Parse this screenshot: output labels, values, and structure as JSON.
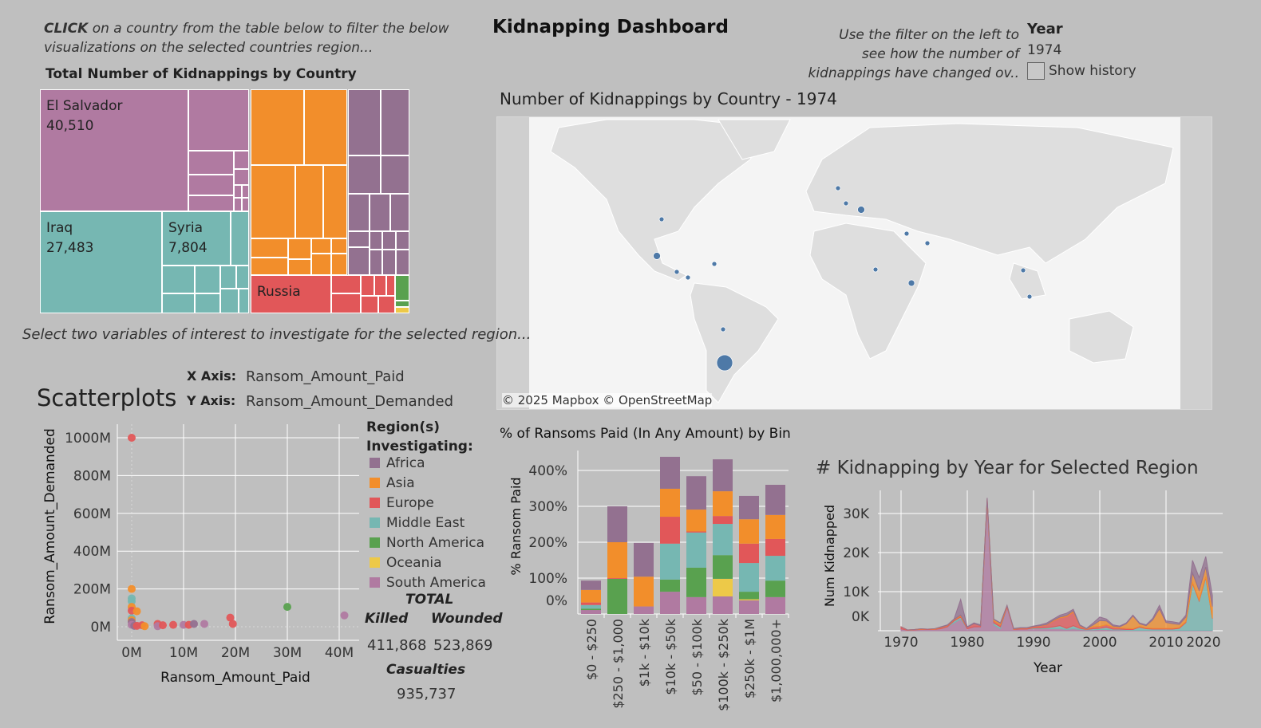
{
  "header": {
    "title": "Kidnapping Dashboard",
    "click_instruction_bold": "CLICK",
    "click_instruction_line1": " on a country from the table below to filter the below",
    "click_instruction_line2": "visualizations on the selected countries region...",
    "filter_instruction": [
      "Use the filter on the left to",
      "see how the number of",
      "kidnappings have changed ov.."
    ]
  },
  "year_filter": {
    "label": "Year",
    "value": "1974",
    "show_history_label": "Show history",
    "show_history_checked": false
  },
  "treemap": {
    "title": "Total Number of Kidnappings by Country",
    "labeled_cells": [
      {
        "country": "El Salvador",
        "value": "40,510",
        "region": "South America"
      },
      {
        "country": "Iraq",
        "value": "27,483",
        "region": "Middle East"
      },
      {
        "country": "Syria",
        "value": "7,804",
        "region": "Middle East"
      },
      {
        "country": "Russia",
        "value": "",
        "region": "Europe"
      }
    ]
  },
  "map": {
    "title": "Number of Kidnappings by Country - 1974",
    "attribution": "© 2025 Mapbox © OpenStreetMap",
    "dot_color": "#4e79a7"
  },
  "scatter_controls": {
    "instruction": "Select two variables of interest to investigate for the selected region...",
    "heading": "Scatterplots",
    "x_label": "X Axis:",
    "x_value": "Ransom_Amount_Paid",
    "y_label": "Y Axis:",
    "y_value": "Ransom_Amount_Demanded"
  },
  "legend": {
    "title_line1": "Region(s)",
    "title_line2": "Investigating:",
    "items": [
      {
        "name": "Africa",
        "color": "#937190"
      },
      {
        "name": "Asia",
        "color": "#f28e2b"
      },
      {
        "name": "Europe",
        "color": "#e15759"
      },
      {
        "name": "Middle East",
        "color": "#76b7b2"
      },
      {
        "name": "North America",
        "color": "#59a14f"
      },
      {
        "name": "Oceania",
        "color": "#edc948"
      },
      {
        "name": "South America",
        "color": "#b07aa1"
      }
    ]
  },
  "totals": {
    "title": "TOTAL",
    "killed_label": "Killed",
    "killed": "411,868",
    "wounded_label": "Wounded",
    "wounded": "523,869",
    "casualties_label": "Casualties",
    "casualties": "935,737"
  },
  "chart_data": [
    {
      "type": "scatter",
      "xlabel": "Ransom_Amount_Paid",
      "ylabel": "Ransom_Amount_Demanded",
      "xlim": [
        -2.5,
        44
      ],
      "ylim": [
        -70,
        1060
      ],
      "xticks": [
        "0M",
        "10M",
        "20M",
        "30M",
        "40M"
      ],
      "xtick_values": [
        0,
        10,
        20,
        30,
        40
      ],
      "yticks": [
        "0M",
        "200M",
        "400M",
        "600M",
        "800M",
        "1000M"
      ],
      "ytick_values": [
        0,
        200,
        400,
        600,
        800,
        1000
      ],
      "grid": true,
      "points": [
        {
          "x": 0,
          "y": 1000,
          "region": "Europe"
        },
        {
          "x": 0,
          "y": 200,
          "region": "Asia"
        },
        {
          "x": 0,
          "y": 150,
          "region": "Middle East"
        },
        {
          "x": 0,
          "y": 135,
          "region": "Middle East"
        },
        {
          "x": 0,
          "y": 105,
          "region": "Asia"
        },
        {
          "x": 0,
          "y": 85,
          "region": "Europe"
        },
        {
          "x": 1,
          "y": 82,
          "region": "Asia"
        },
        {
          "x": 0,
          "y": 45,
          "region": "Middle East"
        },
        {
          "x": 0,
          "y": 35,
          "region": "Asia"
        },
        {
          "x": 0,
          "y": 25,
          "region": "Africa"
        },
        {
          "x": 0,
          "y": 10,
          "region": "South America"
        },
        {
          "x": 0.5,
          "y": 5,
          "region": "Africa"
        },
        {
          "x": 1,
          "y": 5,
          "region": "Europe"
        },
        {
          "x": 2,
          "y": 8,
          "region": "Europe"
        },
        {
          "x": 2.5,
          "y": 3,
          "region": "Asia"
        },
        {
          "x": 5,
          "y": 15,
          "region": "Europe"
        },
        {
          "x": 5,
          "y": 3,
          "region": "South America"
        },
        {
          "x": 6,
          "y": 8,
          "region": "Europe"
        },
        {
          "x": 8,
          "y": 10,
          "region": "Europe"
        },
        {
          "x": 10,
          "y": 10,
          "region": "South America"
        },
        {
          "x": 11,
          "y": 10,
          "region": "Europe"
        },
        {
          "x": 12,
          "y": 15,
          "region": "Africa"
        },
        {
          "x": 14,
          "y": 15,
          "region": "South America"
        },
        {
          "x": 19,
          "y": 48,
          "region": "Europe"
        },
        {
          "x": 19.5,
          "y": 15,
          "region": "Europe"
        },
        {
          "x": 30,
          "y": 105,
          "region": "North America"
        },
        {
          "x": 41,
          "y": 60,
          "region": "South America"
        }
      ]
    },
    {
      "type": "bar",
      "stacked": true,
      "title": "% of Ransoms Paid (In Any Amount)  by Bin",
      "ylabel": "% Ransom Paid",
      "ylim": [
        0,
        450
      ],
      "yticks": [
        "0%",
        "100%",
        "200%",
        "300%",
        "400%"
      ],
      "ytick_values": [
        0,
        100,
        200,
        300,
        400
      ],
      "categories": [
        "$0 - $250",
        "$250 - $1,000",
        "$1k - $10k",
        "$10k - $50k",
        "$50 - $100k",
        "$100k - $250k",
        "$250k - $1M",
        "$1,000,000+"
      ],
      "series": [
        {
          "name": "South America",
          "values": [
            11,
            0,
            21,
            62,
            47,
            49,
            38,
            47
          ]
        },
        {
          "name": "Oceania",
          "values": [
            0,
            0,
            0,
            0,
            0,
            49,
            3,
            0
          ]
        },
        {
          "name": "North America",
          "values": [
            4,
            98,
            0,
            34,
            82,
            66,
            21,
            46
          ]
        },
        {
          "name": "Middle East",
          "values": [
            10,
            0,
            0,
            100,
            98,
            87,
            80,
            69
          ]
        },
        {
          "name": "Europe",
          "values": [
            7,
            2,
            0,
            75,
            3,
            22,
            54,
            47
          ]
        },
        {
          "name": "Asia",
          "values": [
            35,
            100,
            83,
            78,
            61,
            69,
            68,
            67
          ]
        },
        {
          "name": "Africa",
          "values": [
            26,
            100,
            94,
            89,
            93,
            89,
            65,
            84
          ]
        }
      ]
    },
    {
      "type": "area",
      "stacked": true,
      "title": "# Kidnapping by Year for Selected Region",
      "xlabel": "Year",
      "ylabel": "Num Kidnapped",
      "xticks": [
        "1970",
        "1980",
        "1990",
        "2000",
        "2010",
        "2020"
      ],
      "xtick_values": [
        1970,
        1980,
        1990,
        2000,
        2010,
        2020
      ],
      "yticks": [
        "0K",
        "10K",
        "20K",
        "30K"
      ],
      "ytick_values": [
        0,
        10,
        20,
        30
      ],
      "units": "thousands",
      "x_start": 1970,
      "x_end": 2017,
      "series": [
        {
          "name": "South America",
          "values": [
            0.5,
            0.1,
            0.2,
            0.3,
            0.3,
            0.3,
            0.5,
            1,
            2,
            3,
            0.5,
            1,
            1,
            33,
            1.5,
            0.5,
            6,
            0.3,
            0.4,
            0.4,
            0.5,
            0.5,
            0.5,
            0.5,
            0.5,
            0.3,
            0.5,
            0.3,
            0.2,
            0.2,
            0.3,
            0.3,
            0.2,
            0.2,
            0.1,
            0.1,
            0.1,
            0.1,
            0.1,
            0.1,
            0.1,
            0.1,
            0.1,
            0.1,
            0.1,
            0.1,
            0.1,
            0.1
          ]
        },
        {
          "name": "Middle East",
          "values": [
            0,
            0,
            0,
            0,
            0,
            0,
            0,
            0,
            0.5,
            0.5,
            0,
            0,
            0,
            0,
            0.5,
            0.5,
            0,
            0,
            0,
            0,
            0.2,
            0.2,
            0.3,
            0.5,
            0.8,
            0.3,
            0.8,
            0.3,
            0.1,
            0.3,
            0.3,
            0.6,
            0.2,
            0.2,
            0.2,
            0.2,
            0.8,
            0.4,
            0.3,
            0.3,
            0.3,
            0.3,
            0.5,
            2,
            12,
            7.5,
            13.5,
            3
          ]
        },
        {
          "name": "Europe",
          "values": [
            0.5,
            0.1,
            0.1,
            0.1,
            0.1,
            0.1,
            0.3,
            0.3,
            0.3,
            0.2,
            0.4,
            0.8,
            0.3,
            0.5,
            0.5,
            0.5,
            0.3,
            0.1,
            0.2,
            0.2,
            0.3,
            0.5,
            0.7,
            1.5,
            2,
            3,
            3.5,
            0.5,
            0.1,
            0.5,
            0.5,
            0.6,
            0.5,
            0.3,
            0.3,
            0.2,
            0.2,
            0.2,
            0.2,
            0.2,
            0.2,
            0.2,
            0.2,
            0.2,
            0.2,
            0.2,
            0.2,
            0.1
          ]
        },
        {
          "name": "Asia",
          "values": [
            0,
            0,
            0,
            0.1,
            0,
            0.1,
            0.1,
            0.1,
            0.1,
            0.3,
            0,
            0,
            0,
            0.3,
            0.4,
            0.4,
            0.1,
            0.1,
            0.1,
            0.1,
            0.1,
            0.1,
            0.1,
            0.2,
            0.2,
            0.3,
            0.3,
            0.2,
            0.1,
            0.5,
            1.5,
            1,
            0.3,
            0.3,
            1.2,
            3.3,
            0.7,
            0.6,
            2.2,
            5,
            1.5,
            1.2,
            0.8,
            1.2,
            2.5,
            2.5,
            2.5,
            3
          ]
        },
        {
          "name": "Africa",
          "values": [
            0,
            0,
            0,
            0,
            0,
            0,
            0.1,
            0.1,
            0.1,
            4,
            0.1,
            0.2,
            0.2,
            0.2,
            0.1,
            0.1,
            0.1,
            0.1,
            0.1,
            0.1,
            0.1,
            0.2,
            0.4,
            0.3,
            0.5,
            0.6,
            0.4,
            0.2,
            0.1,
            0.5,
            0.9,
            0.5,
            0.3,
            0.2,
            0.2,
            0.2,
            0.2,
            0.2,
            0.4,
            0.9,
            0.4,
            0.5,
            0.4,
            0.5,
            3.2,
            3.3,
            2.7,
            2.8
          ]
        }
      ]
    }
  ]
}
